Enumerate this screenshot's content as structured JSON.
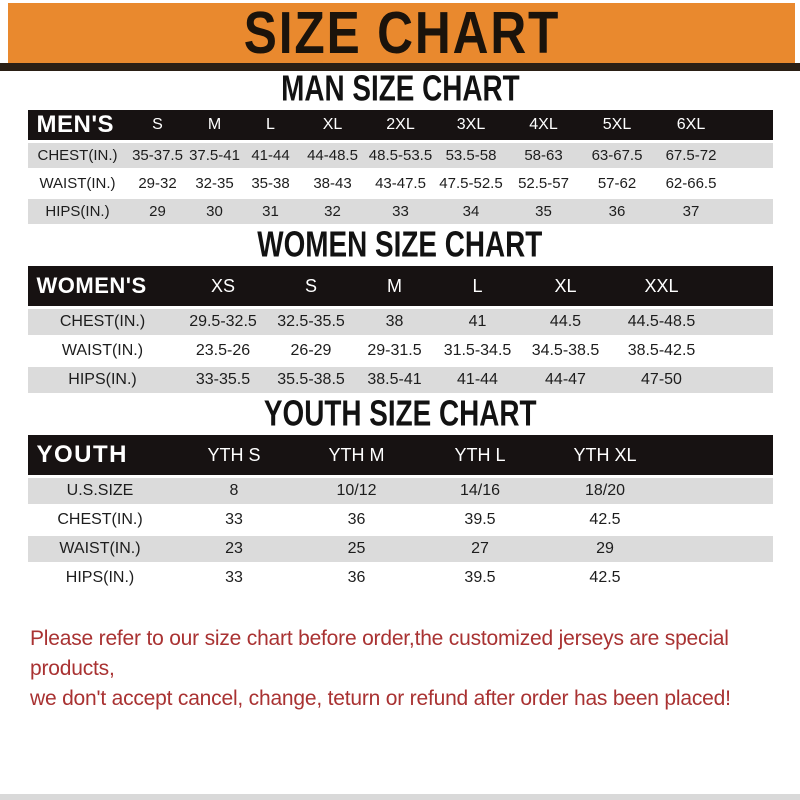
{
  "banner": {
    "title": "SIZE CHART"
  },
  "sections": [
    {
      "id": "man",
      "heading": "MAN SIZE CHART",
      "table": {
        "label": "MEN'S",
        "columns": [
          "S",
          "M",
          "L",
          "XL",
          "2XL",
          "3XL",
          "4XL",
          "5XL",
          "6XL"
        ],
        "rows": [
          {
            "label": "CHEST(IN.)",
            "values": [
              "35-37.5",
              "37.5-41",
              "41-44",
              "44-48.5",
              "48.5-53.5",
              "53.5-58",
              "58-63",
              "63-67.5",
              "67.5-72"
            ]
          },
          {
            "label": "WAIST(IN.)",
            "values": [
              "29-32",
              "32-35",
              "35-38",
              "38-43",
              "43-47.5",
              "47.5-52.5",
              "52.5-57",
              "57-62",
              "62-66.5"
            ]
          },
          {
            "label": "HIPS(IN.)",
            "values": [
              "29",
              "30",
              "31",
              "32",
              "33",
              "34",
              "35",
              "36",
              "37"
            ]
          }
        ]
      }
    },
    {
      "id": "women",
      "heading": "WOMEN SIZE CHART",
      "table": {
        "label": "WOMEN'S",
        "columns": [
          "XS",
          "S",
          "M",
          "L",
          "XL",
          "XXL"
        ],
        "rows": [
          {
            "label": "CHEST(IN.)",
            "values": [
              "29.5-32.5",
              "32.5-35.5",
              "38",
              "41",
              "44.5",
              "44.5-48.5"
            ]
          },
          {
            "label": "WAIST(IN.)",
            "values": [
              "23.5-26",
              "26-29",
              "29-31.5",
              "31.5-34.5",
              "34.5-38.5",
              "38.5-42.5"
            ]
          },
          {
            "label": "HIPS(IN.)",
            "values": [
              "33-35.5",
              "35.5-38.5",
              "38.5-41",
              "41-44",
              "44-47",
              "47-50"
            ]
          }
        ]
      }
    },
    {
      "id": "youth",
      "heading": "YOUTH SIZE CHART",
      "table": {
        "label": "YOUTH",
        "columns": [
          "YTH S",
          "YTH M",
          "YTH L",
          "YTH XL"
        ],
        "rows": [
          {
            "label": "U.S.SIZE",
            "values": [
              "8",
              "10/12",
              "14/16",
              "18/20"
            ]
          },
          {
            "label": "CHEST(IN.)",
            "values": [
              "33",
              "36",
              "39.5",
              "42.5"
            ]
          },
          {
            "label": "WAIST(IN.)",
            "values": [
              "23",
              "25",
              "27",
              "29"
            ]
          },
          {
            "label": "HIPS(IN.)",
            "values": [
              "33",
              "36",
              "39.5",
              "42.5"
            ]
          }
        ]
      }
    }
  ],
  "footer": {
    "line1": "Please refer to our size chart before order,the customized jerseys are special products,",
    "line2": "we don't accept cancel, change, teturn or refund after order has been placed!"
  },
  "colors": {
    "banner_orange": "#E9892E",
    "banner_shadow": "#2A1F15",
    "header_bar_black": "#171212",
    "row_stripe_gray": "#DBDBDB",
    "footer_red": "#A93232"
  }
}
